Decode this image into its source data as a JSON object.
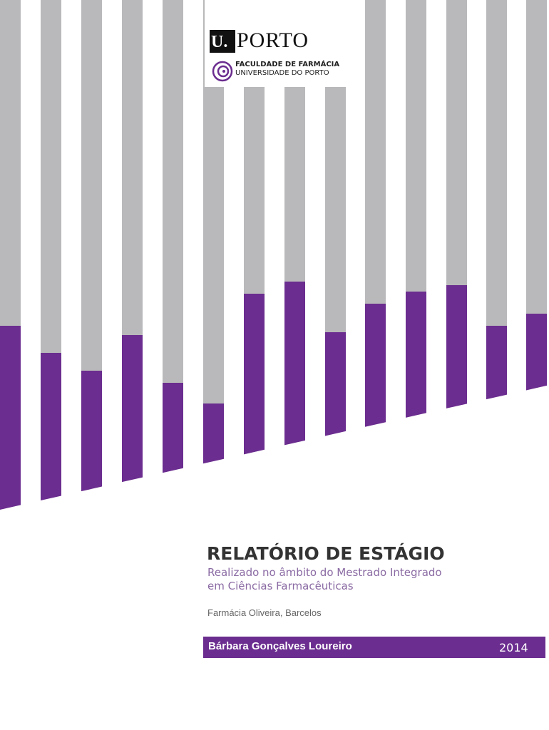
{
  "logo": {
    "mark": "U.",
    "name": "PORTO",
    "faculty": "FACULDADE DE FARMÁCIA",
    "university": "UNIVERSIDADE DO PORTO"
  },
  "title": "RELATÓRIO DE ESTÁGIO",
  "subtitle": [
    "Realizado no âmbito do Mestrado Integrado",
    "em Ciências Farmacêuticas"
  ],
  "place": "Farmácia Oliveira, Barcelos",
  "author": "Bárbara Gonçalves Loureiro",
  "year": "2014"
}
